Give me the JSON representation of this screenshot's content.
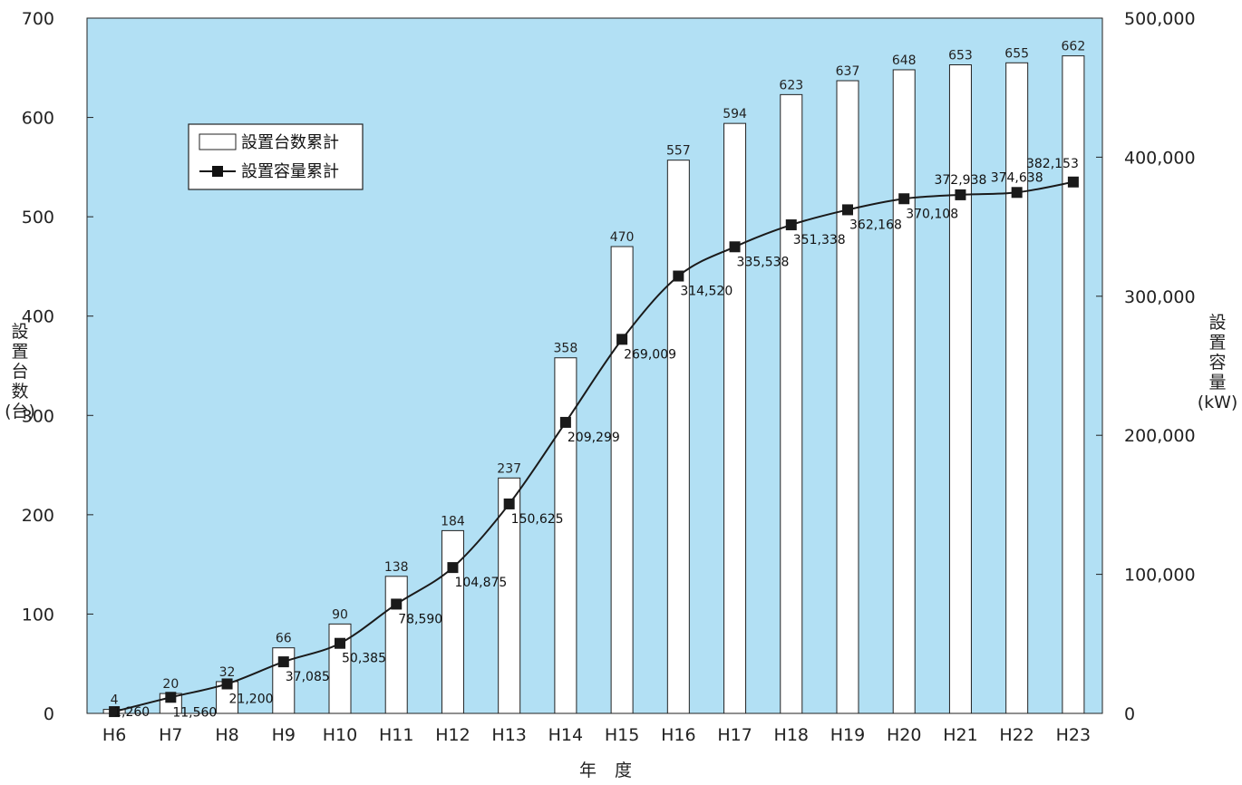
{
  "chart_data": {
    "type": "bar",
    "categories": [
      "H6",
      "H7",
      "H8",
      "H9",
      "H10",
      "H11",
      "H12",
      "H13",
      "H14",
      "H15",
      "H16",
      "H17",
      "H18",
      "H19",
      "H20",
      "H21",
      "H22",
      "H23"
    ],
    "series": [
      {
        "name": "設置台数累計",
        "type": "bar",
        "axis": "left",
        "values": [
          4,
          20,
          32,
          66,
          90,
          138,
          184,
          237,
          358,
          470,
          557,
          594,
          623,
          637,
          648,
          653,
          655,
          662
        ],
        "labels": [
          "4",
          "20",
          "32",
          "66",
          "90",
          "138",
          "184",
          "237",
          "358",
          "470",
          "557",
          "594",
          "623",
          "637",
          "648",
          "653",
          "655",
          "662"
        ]
      },
      {
        "name": "設置容量累計",
        "type": "line",
        "axis": "right",
        "values": [
          1260,
          11560,
          21200,
          37085,
          50385,
          78590,
          104875,
          150625,
          209299,
          269009,
          314520,
          335538,
          351338,
          362168,
          370108,
          372938,
          374638,
          382153
        ],
        "labels": [
          "1,260",
          "11,560",
          "21,200",
          "37,085",
          "50,385",
          "78,590",
          "104,875",
          "150,625",
          "209,299",
          "269,009",
          "314,520",
          "335,538",
          "351,338",
          "362,168",
          "370,108",
          "372,938",
          "374,638",
          "382,153"
        ]
      }
    ],
    "xlabel": "年 度",
    "ylabel_left": [
      "設",
      "置",
      "台",
      "数",
      "(台)"
    ],
    "ylabel_right": [
      "設",
      "置",
      "容",
      "量",
      "(kW)"
    ],
    "ylim_left": [
      0,
      700
    ],
    "ylim_right": [
      0,
      500000
    ],
    "yticks_left": [
      "0",
      "100",
      "200",
      "300",
      "400",
      "500",
      "600",
      "700"
    ],
    "yticks_right": [
      "0",
      "100,000",
      "200,000",
      "300,000",
      "400,000",
      "500,000"
    ],
    "legend_position": "top-left",
    "grid": false,
    "colors": {
      "plot_background": "#b2e0f4",
      "bar_fill": "#ffffff",
      "line": "#1a1a1a"
    }
  }
}
